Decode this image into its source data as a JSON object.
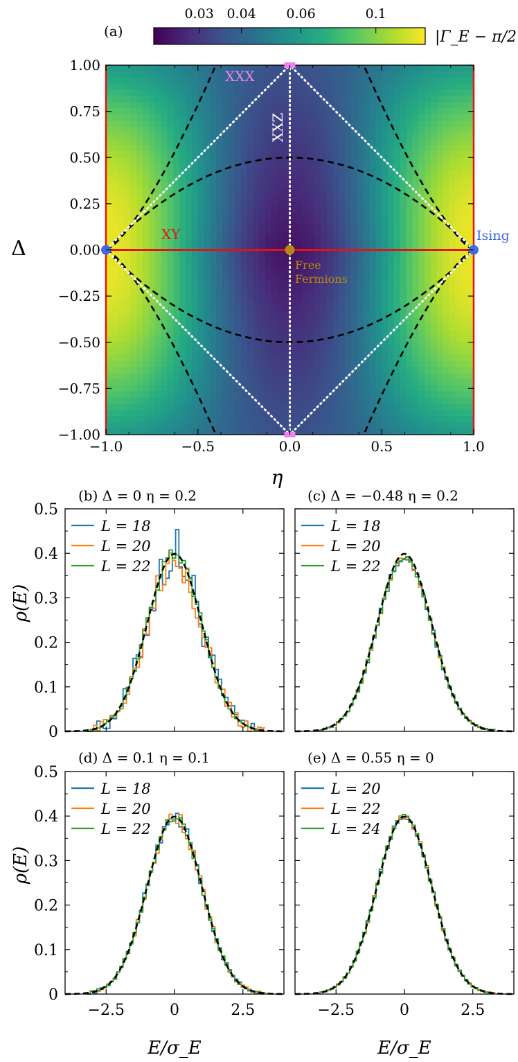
{
  "colorbar": {
    "label": "|Γ_E − π/2|",
    "ticks": [
      "0.03",
      "0.04",
      "0.06",
      "0.1"
    ],
    "tick_values": [
      0.03,
      0.04,
      0.06,
      0.1
    ],
    "range": [
      0.022,
      0.14
    ],
    "scale": "log",
    "colormap": "viridis"
  },
  "panel_a": {
    "tag": "(a)",
    "xlabel": "η",
    "ylabel": "Δ",
    "xticks": [
      "−1.0",
      "−0.5",
      "0.0",
      "0.5",
      "1.0"
    ],
    "yticks": [
      "−1.00",
      "−0.75",
      "−0.50",
      "−0.25",
      "0.00",
      "0.25",
      "0.50",
      "0.75",
      "1.00"
    ],
    "annotations": {
      "xxx": "XXX",
      "xxz": "XXZ",
      "xy": "XY",
      "ising": "Ising",
      "free1": "Free",
      "free2": "Fermions"
    },
    "colors": {
      "xxx": "#ee82ee",
      "xxz": "#ffffff",
      "xy": "#e8110f",
      "ising": "#4169e1",
      "free": "#b8860b",
      "dashed": "#000000",
      "dotted": "#ffffff"
    }
  },
  "histograms": {
    "xlabel": "E/σ_E",
    "ylabel": "ρ(E)",
    "yticks": [
      "0",
      "0.1",
      "0.2",
      "0.3",
      "0.4",
      "0.5"
    ],
    "xticks": [
      "−2.5",
      "0",
      "2.5"
    ],
    "series_colors": [
      "#1f77b4",
      "#ff7f0e",
      "#2ca02c"
    ]
  },
  "chart_data": [
    {
      "type": "heatmap",
      "title": "(a)",
      "xlabel": "η",
      "ylabel": "Δ",
      "xlim": [
        -1.0,
        1.0
      ],
      "ylim": [
        -1.0,
        1.0
      ],
      "colorbar_label": "|Γ_E − π/2|",
      "colorbar_range": [
        0.022,
        0.14
      ],
      "colorbar_scale": "log",
      "description_points": [
        {
          "eta": 0.0,
          "delta": 0.0,
          "value": 0.022
        },
        {
          "eta": -0.5,
          "delta": 0.0,
          "value": 0.06
        },
        {
          "eta": -1.0,
          "delta": 0.0,
          "value": 0.14
        },
        {
          "eta": 0.0,
          "delta": 1.0,
          "value": 0.03
        },
        {
          "eta": -1.0,
          "delta": 0.5,
          "value": 0.12
        }
      ]
    },
    {
      "type": "line",
      "title": "(b) Δ = 0    η = 0.2",
      "xlabel": "E/σ_E",
      "ylabel": "ρ(E)",
      "xlim": [
        -4,
        4
      ],
      "ylim": [
        0,
        0.5
      ],
      "series": [
        {
          "name": "L = 18",
          "noise": 0.05
        },
        {
          "name": "L = 20",
          "noise": 0.035
        },
        {
          "name": "L = 22",
          "noise": 0.012
        }
      ],
      "reference": "Gaussian N(0,1) dashed"
    },
    {
      "type": "line",
      "title": "(c) Δ = −0.48    η = 0.2",
      "xlabel": "E/σ_E",
      "ylabel": "ρ(E)",
      "xlim": [
        -4,
        4
      ],
      "ylim": [
        0,
        0.5
      ],
      "series": [
        {
          "name": "L = 18",
          "noise": 0.008
        },
        {
          "name": "L = 20",
          "noise": 0.006
        },
        {
          "name": "L = 22",
          "noise": 0.004
        }
      ],
      "peak": 0.39,
      "reference": "Gaussian N(0,1) dashed"
    },
    {
      "type": "line",
      "title": "(d) Δ = 0.1    η = 0.1",
      "xlabel": "E/σ_E",
      "ylabel": "ρ(E)",
      "xlim": [
        -4,
        4
      ],
      "ylim": [
        0,
        0.5
      ],
      "series": [
        {
          "name": "L = 18",
          "noise": 0.012
        },
        {
          "name": "L = 20",
          "noise": 0.012
        },
        {
          "name": "L = 22",
          "noise": 0.008
        }
      ],
      "reference": "Gaussian N(0,1) dashed"
    },
    {
      "type": "line",
      "title": "(e) Δ = 0.55    η = 0",
      "xlabel": "E/σ_E",
      "ylabel": "ρ(E)",
      "xlim": [
        -4,
        4
      ],
      "ylim": [
        0,
        0.5
      ],
      "series": [
        {
          "name": "L = 20",
          "noise": 0.006
        },
        {
          "name": "L = 22",
          "noise": 0.005
        },
        {
          "name": "L = 24",
          "noise": 0.004
        }
      ],
      "reference": "Gaussian N(0,1) dashed"
    }
  ]
}
